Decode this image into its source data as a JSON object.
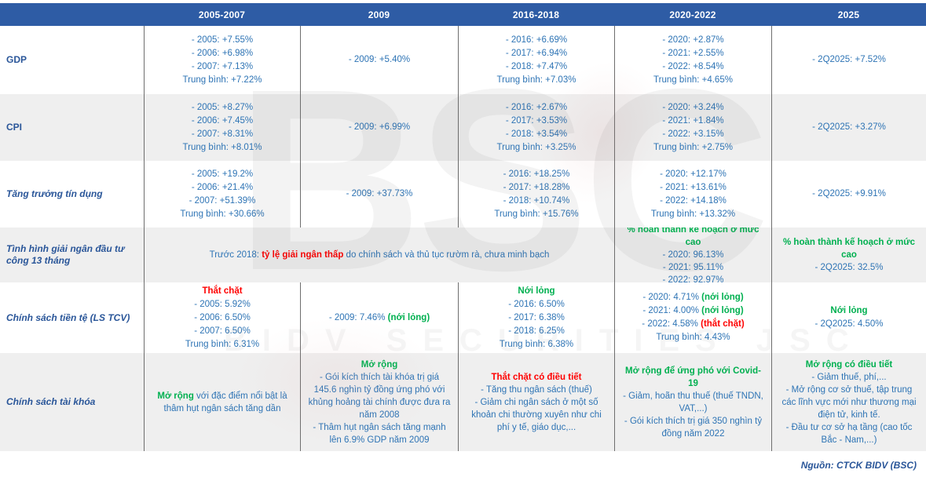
{
  "table": {
    "header": [
      "",
      "2005-2007",
      "2009",
      "2016-2018",
      "2020-2022",
      "2025"
    ],
    "rows": {
      "gdp": {
        "label": "GDP",
        "cells": {
          "c2005_07": [
            "- 2005: +7.55%",
            "- 2006: +6.98%",
            "- 2007: +7.13%",
            "Trung bình: +7.22%"
          ],
          "c2009": [
            "- 2009: +5.40%"
          ],
          "c2016_18": [
            "- 2016: +6.69%",
            "- 2017: +6.94%",
            "- 2018: +7.47%",
            "Trung bình: +7.03%"
          ],
          "c2020_22": [
            "- 2020: +2.87%",
            "- 2021: +2.55%",
            "- 2022: +8.54%",
            "Trung bình: +4.65%"
          ],
          "c2025": [
            "- 2Q2025: +7.52%"
          ]
        }
      },
      "cpi": {
        "label": "CPI",
        "cells": {
          "c2005_07": [
            "- 2005: +8.27%",
            "- 2006: +7.45%",
            "- 2007: +8.31%",
            "Trung bình: +8.01%"
          ],
          "c2009": [
            "- 2009: +6.99%"
          ],
          "c2016_18": [
            "- 2016: +2.67%",
            "- 2017: +3.53%",
            "- 2018: +3.54%",
            "Trung bình: +3.25%"
          ],
          "c2020_22": [
            "- 2020: +3.24%",
            "- 2021: +1.84%",
            "- 2022: +3.15%",
            "Trung bình: +2.75%"
          ],
          "c2025": [
            "- 2Q2025: +3.27%"
          ]
        }
      },
      "credit": {
        "label": "Tăng trưởng tín dụng",
        "cells": {
          "c2005_07": [
            "- 2005: +19.2%",
            "- 2006: +21.4%",
            "- 2007: +51.39%",
            "Trung bình: +30.66%"
          ],
          "c2009": [
            "- 2009: +37.73%"
          ],
          "c2016_18": [
            "- 2016: +18.25%",
            "- 2017: +18.28%",
            "- 2018: +10.74%",
            "Trung bình: +15.76%"
          ],
          "c2020_22": [
            "- 2020: +12.17%",
            "- 2021: +13.61%",
            "- 2022: +14.18%",
            "Trung bình: +13.32%"
          ],
          "c2025": [
            "- 2Q2025: +9.91%"
          ]
        }
      },
      "disbursement": {
        "label": "Tình hình giải ngân đầu tư công 13 tháng",
        "cells": {
          "merged_pre2018": [
            [
              {
                "t": "Trước 2018: "
              },
              {
                "t": "tỷ lệ giải ngân thấp",
                "c": "red",
                "b": true
              },
              {
                "t": " do chính sách và thủ tục rườm rà, chưa minh bạch"
              }
            ]
          ],
          "c2020_22": [
            [
              {
                "t": "% hoàn thành kế hoạch ở mức cao",
                "c": "green",
                "b": true
              }
            ],
            "- 2020: 96.13%",
            "- 2021: 95.11%",
            "- 2022: 92.97%"
          ],
          "c2025": [
            [
              {
                "t": "% hoàn thành kế hoạch ở mức cao",
                "c": "green",
                "b": true
              }
            ],
            "- 2Q2025: 32.5%"
          ]
        }
      },
      "monetary": {
        "label": "Chính sách tiền tệ (LS TCV)",
        "cells": {
          "c2005_07": [
            [
              {
                "t": "Thắt chặt",
                "c": "red",
                "b": true
              }
            ],
            "- 2005: 5.92%",
            "- 2006: 6.50%",
            "- 2007: 6.50%",
            "Trung bình: 6.31%"
          ],
          "c2009": [
            [
              {
                "t": "- 2009: 7.46% "
              },
              {
                "t": "(nới lỏng)",
                "c": "green",
                "b": true
              }
            ]
          ],
          "c2016_18": [
            [
              {
                "t": "Nới lỏng",
                "c": "green",
                "b": true
              }
            ],
            "- 2016: 6.50%",
            "- 2017: 6.38%",
            "- 2018: 6.25%",
            "Trung bình: 6.38%"
          ],
          "c2020_22": [
            [
              {
                "t": "- 2020: 4.71% "
              },
              {
                "t": "(nới lỏng)",
                "c": "green",
                "b": true
              }
            ],
            [
              {
                "t": "- 2021: 4.00% "
              },
              {
                "t": "(nới lỏng)",
                "c": "green",
                "b": true
              }
            ],
            [
              {
                "t": "- 2022: 4.58% "
              },
              {
                "t": "(thắt chặt)",
                "c": "red",
                "b": true
              }
            ],
            "Trung bình: 4.43%"
          ],
          "c2025": [
            [
              {
                "t": "Nới lỏng",
                "c": "green",
                "b": true
              }
            ],
            "- 2Q2025: 4.50%"
          ]
        }
      },
      "fiscal": {
        "label": "Chính sách tài khóa",
        "cells": {
          "c2005_07": [
            [
              {
                "t": "Mở rộng",
                "c": "green",
                "b": true
              },
              {
                "t": " với đặc điểm nổi bật là thâm hụt ngân sách tăng dần"
              }
            ]
          ],
          "c2009": [
            [
              {
                "t": "Mở rộng",
                "c": "green",
                "b": true
              }
            ],
            "- Gói kích thích tài khóa trị giá 145.6 nghìn tỷ đồng ứng phó với khủng hoảng tài chính được đưa ra năm 2008",
            "- Thâm hụt ngân sách tăng mạnh lên 6.9% GDP năm 2009"
          ],
          "c2016_18": [
            [
              {
                "t": "Thắt chặt có điều tiết",
                "c": "red",
                "b": true
              }
            ],
            "- Tăng thu ngân sách (thuế)",
            "- Giảm chi ngân sách ở một số khoản chi thường xuyên như chi phí y tế, giáo dục,..."
          ],
          "c2020_22": [
            [
              {
                "t": "Mở rộng để ứng phó với Covid-19",
                "c": "green",
                "b": true
              }
            ],
            "- Giảm, hoãn thu thuế (thuế TNDN, VAT,...)",
            "- Gói kích thích trị giá 350 nghìn tỷ đồng năm 2022"
          ],
          "c2025": [
            [
              {
                "t": "Mở rộng có điều tiết",
                "c": "green",
                "b": true
              }
            ],
            "- Giảm thuế, phí,...",
            "- Mở rộng cơ sở thuế, tập trung các lĩnh vực mới như thương mại điện tử, kinh tế.",
            "- Đầu tư cơ sở hạ tầng (cao tốc Bắc - Nam,...)"
          ]
        }
      }
    }
  },
  "footer": {
    "source": "Nguồn: CTCK BIDV (BSC)"
  },
  "watermark": {
    "logo": "BSC",
    "subtitle": "BIDV SECURITIES JSC"
  },
  "colors": {
    "header_bg": "#2e5ca5",
    "data_text": "#2e74b5",
    "label_text": "#2a5699",
    "positive_green": "#00b050",
    "negative_red": "#ff0000",
    "stripe_gray": "#efefef"
  }
}
